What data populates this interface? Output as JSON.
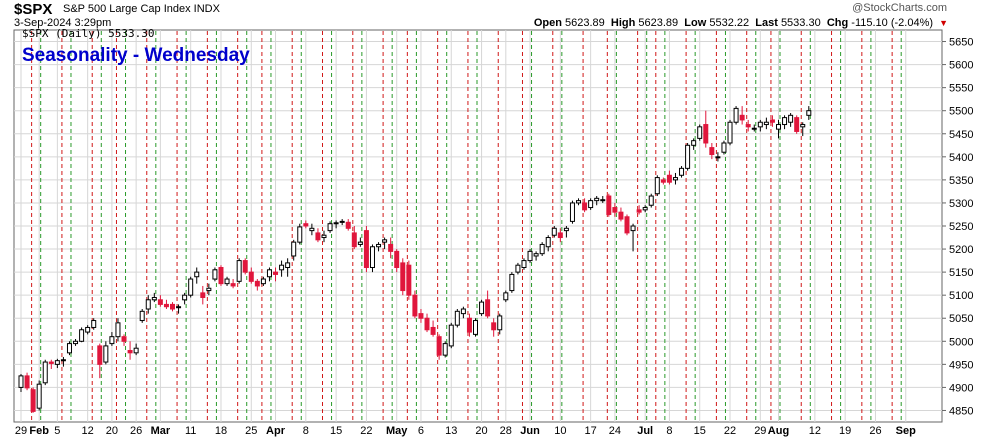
{
  "header": {
    "symbol": "$SPX",
    "description": "S&P 500 Large Cap Index INDX",
    "date_time": "3-Sep-2024 3:29pm",
    "copyright": "@StockCharts.com",
    "open_label": "Open",
    "open": "5623.89",
    "high_label": "High",
    "high": "5623.89",
    "low_label": "Low",
    "low": "5532.22",
    "last_label": "Last",
    "last": "5533.30",
    "chg_label": "Chg",
    "chg": "-115.10 (-2.04%)"
  },
  "legend": "$SPX (Daily) 5533.30",
  "colors": {
    "up": "#000000",
    "down": "#e0163c",
    "green_line": "#2a9a2a",
    "red_line": "#d01818",
    "grid": "#d6d6d6",
    "title": "#0000cc"
  },
  "chart_data": {
    "type": "candlestick",
    "title": "Seasonality - Wednesday",
    "xlabel": "",
    "ylabel": "",
    "ylim": [
      4825,
      5675
    ],
    "y_ticks": [
      4850,
      4900,
      4950,
      5000,
      5050,
      5100,
      5150,
      5200,
      5250,
      5300,
      5350,
      5400,
      5450,
      5500,
      5550,
      5600,
      5650
    ],
    "x_ticks": [
      {
        "i": 0,
        "label": "29"
      },
      {
        "i": 3,
        "label": "Feb"
      },
      {
        "i": 6,
        "label": "5"
      },
      {
        "i": 11,
        "label": "12"
      },
      {
        "i": 15,
        "label": "20"
      },
      {
        "i": 19,
        "label": "26"
      },
      {
        "i": 23,
        "label": "Mar"
      },
      {
        "i": 28,
        "label": "11"
      },
      {
        "i": 33,
        "label": "18"
      },
      {
        "i": 38,
        "label": "25"
      },
      {
        "i": 42,
        "label": "Apr"
      },
      {
        "i": 47,
        "label": "8"
      },
      {
        "i": 52,
        "label": "15"
      },
      {
        "i": 57,
        "label": "22"
      },
      {
        "i": 62,
        "label": "May"
      },
      {
        "i": 66,
        "label": "6"
      },
      {
        "i": 71,
        "label": "13"
      },
      {
        "i": 76,
        "label": "20"
      },
      {
        "i": 80,
        "label": "28"
      },
      {
        "i": 84,
        "label": "Jun"
      },
      {
        "i": 89,
        "label": "10"
      },
      {
        "i": 94,
        "label": "17"
      },
      {
        "i": 98,
        "label": "24"
      },
      {
        "i": 103,
        "label": "Jul"
      },
      {
        "i": 107,
        "label": "8"
      },
      {
        "i": 112,
        "label": "15"
      },
      {
        "i": 117,
        "label": "22"
      },
      {
        "i": 122,
        "label": "29"
      },
      {
        "i": 125,
        "label": "Aug"
      },
      {
        "i": 131,
        "label": "12"
      },
      {
        "i": 136,
        "label": "19"
      },
      {
        "i": 141,
        "label": "26"
      },
      {
        "i": 146,
        "label": "Sep"
      }
    ],
    "seasonality_lines": [
      {
        "i": 2,
        "kind": "red"
      },
      {
        "i": 3,
        "kind": "green"
      },
      {
        "i": 7,
        "kind": "red"
      },
      {
        "i": 8,
        "kind": "green"
      },
      {
        "i": 12,
        "kind": "red"
      },
      {
        "i": 13,
        "kind": "green"
      },
      {
        "i": 16,
        "kind": "red"
      },
      {
        "i": 17,
        "kind": "green"
      },
      {
        "i": 21,
        "kind": "red"
      },
      {
        "i": 22,
        "kind": "green"
      },
      {
        "i": 26,
        "kind": "red"
      },
      {
        "i": 27,
        "kind": "green"
      },
      {
        "i": 31,
        "kind": "red"
      },
      {
        "i": 32,
        "kind": "green"
      },
      {
        "i": 36,
        "kind": "red"
      },
      {
        "i": 37,
        "kind": "green"
      },
      {
        "i": 40,
        "kind": "red"
      },
      {
        "i": 41,
        "kind": "green"
      },
      {
        "i": 45,
        "kind": "red"
      },
      {
        "i": 46,
        "kind": "green"
      },
      {
        "i": 50,
        "kind": "red"
      },
      {
        "i": 51,
        "kind": "green"
      },
      {
        "i": 55,
        "kind": "red"
      },
      {
        "i": 56,
        "kind": "green"
      },
      {
        "i": 60,
        "kind": "red"
      },
      {
        "i": 61,
        "kind": "green"
      },
      {
        "i": 64,
        "kind": "red"
      },
      {
        "i": 65,
        "kind": "green"
      },
      {
        "i": 69,
        "kind": "red"
      },
      {
        "i": 70,
        "kind": "green"
      },
      {
        "i": 74,
        "kind": "red"
      },
      {
        "i": 75,
        "kind": "green"
      },
      {
        "i": 79,
        "kind": "red"
      },
      {
        "i": 83,
        "kind": "red"
      },
      {
        "i": 84,
        "kind": "green"
      },
      {
        "i": 88,
        "kind": "red"
      },
      {
        "i": 89,
        "kind": "green"
      },
      {
        "i": 93,
        "kind": "red"
      },
      {
        "i": 97,
        "kind": "red"
      },
      {
        "i": 98,
        "kind": "green"
      },
      {
        "i": 102,
        "kind": "red"
      },
      {
        "i": 103,
        "kind": "green"
      },
      {
        "i": 105,
        "kind": "red"
      },
      {
        "i": 106,
        "kind": "green"
      },
      {
        "i": 110,
        "kind": "red"
      },
      {
        "i": 111,
        "kind": "green"
      },
      {
        "i": 115,
        "kind": "red"
      },
      {
        "i": 116,
        "kind": "green"
      },
      {
        "i": 120,
        "kind": "red"
      },
      {
        "i": 121,
        "kind": "green"
      },
      {
        "i": 124,
        "kind": "red"
      },
      {
        "i": 125,
        "kind": "green"
      },
      {
        "i": 129,
        "kind": "red"
      },
      {
        "i": 130,
        "kind": "green"
      },
      {
        "i": 134,
        "kind": "red"
      },
      {
        "i": 135,
        "kind": "green"
      },
      {
        "i": 139,
        "kind": "red"
      },
      {
        "i": 140,
        "kind": "green"
      },
      {
        "i": 144,
        "kind": "red"
      },
      {
        "i": 145,
        "kind": "green"
      }
    ],
    "ohlc": [
      [
        4900,
        4929,
        4890,
        4925
      ],
      [
        4925,
        4932,
        4894,
        4899
      ],
      [
        4895,
        4900,
        4845,
        4848
      ],
      [
        4855,
        4915,
        4850,
        4907
      ],
      [
        4910,
        4960,
        4905,
        4955
      ],
      [
        4955,
        4960,
        4940,
        4952
      ],
      [
        4950,
        4962,
        4942,
        4958
      ],
      [
        4958,
        4966,
        4945,
        4960
      ],
      [
        4975,
        5000,
        4970,
        4995
      ],
      [
        4995,
        5005,
        4990,
        5000
      ],
      [
        5000,
        5030,
        4998,
        5025
      ],
      [
        5020,
        5035,
        5015,
        5030
      ],
      [
        5030,
        5050,
        5025,
        5045
      ],
      [
        4990,
        4995,
        4920,
        4950
      ],
      [
        4955,
        5000,
        4950,
        4990
      ],
      [
        4995,
        5020,
        4990,
        5010
      ],
      [
        5010,
        5050,
        5000,
        5040
      ],
      [
        5010,
        5015,
        4990,
        5000
      ],
      [
        4980,
        5000,
        4960,
        4975
      ],
      [
        4975,
        4995,
        4970,
        4985
      ],
      [
        5045,
        5070,
        5040,
        5065
      ],
      [
        5070,
        5100,
        5060,
        5090
      ],
      [
        5090,
        5105,
        5085,
        5095
      ],
      [
        5090,
        5100,
        5075,
        5080
      ],
      [
        5080,
        5090,
        5070,
        5075
      ],
      [
        5080,
        5085,
        5065,
        5070
      ],
      [
        5075,
        5080,
        5060,
        5075
      ],
      [
        5090,
        5105,
        5080,
        5100
      ],
      [
        5100,
        5140,
        5095,
        5135
      ],
      [
        5140,
        5160,
        5125,
        5150
      ],
      [
        5105,
        5120,
        5080,
        5095
      ],
      [
        5110,
        5125,
        5100,
        5115
      ],
      [
        5135,
        5160,
        5130,
        5155
      ],
      [
        5160,
        5165,
        5120,
        5125
      ],
      [
        5125,
        5140,
        5120,
        5135
      ],
      [
        5125,
        5135,
        5115,
        5120
      ],
      [
        5130,
        5180,
        5125,
        5175
      ],
      [
        5175,
        5180,
        5145,
        5150
      ],
      [
        5150,
        5160,
        5125,
        5130
      ],
      [
        5130,
        5135,
        5110,
        5120
      ],
      [
        5125,
        5140,
        5120,
        5135
      ],
      [
        5140,
        5160,
        5130,
        5155
      ],
      [
        5150,
        5160,
        5130,
        5145
      ],
      [
        5155,
        5175,
        5140,
        5165
      ],
      [
        5160,
        5180,
        5140,
        5170
      ],
      [
        5185,
        5220,
        5175,
        5215
      ],
      [
        5215,
        5255,
        5210,
        5248
      ],
      [
        5255,
        5262,
        5245,
        5250
      ],
      [
        5240,
        5255,
        5230,
        5245
      ],
      [
        5235,
        5245,
        5215,
        5220
      ],
      [
        5225,
        5240,
        5215,
        5230
      ],
      [
        5240,
        5260,
        5235,
        5255
      ],
      [
        5255,
        5262,
        5245,
        5257
      ],
      [
        5258,
        5265,
        5252,
        5260
      ],
      [
        5258,
        5265,
        5240,
        5245
      ],
      [
        5235,
        5250,
        5200,
        5205
      ],
      [
        5210,
        5225,
        5205,
        5215
      ],
      [
        5240,
        5250,
        5150,
        5160
      ],
      [
        5160,
        5210,
        5150,
        5205
      ],
      [
        5205,
        5215,
        5195,
        5210
      ],
      [
        5215,
        5225,
        5200,
        5220
      ],
      [
        5210,
        5225,
        5180,
        5195
      ],
      [
        5195,
        5200,
        5150,
        5160
      ],
      [
        5170,
        5180,
        5100,
        5110
      ],
      [
        5165,
        5175,
        5090,
        5100
      ],
      [
        5100,
        5110,
        5050,
        5055
      ],
      [
        5060,
        5070,
        5040,
        5050
      ],
      [
        5050,
        5060,
        5020,
        5025
      ],
      [
        5030,
        5045,
        5010,
        5015
      ],
      [
        5010,
        5015,
        4960,
        4970
      ],
      [
        4970,
        5000,
        4965,
        4995
      ],
      [
        4990,
        5040,
        4985,
        5035
      ],
      [
        5035,
        5070,
        5030,
        5065
      ],
      [
        5060,
        5075,
        5050,
        5070
      ],
      [
        5050,
        5060,
        5010,
        5020
      ],
      [
        5015,
        5050,
        5010,
        5045
      ],
      [
        5060,
        5090,
        5055,
        5085
      ],
      [
        5090,
        5110,
        5050,
        5055
      ],
      [
        5040,
        5050,
        5010,
        5025
      ],
      [
        5025,
        5060,
        5015,
        5055
      ],
      [
        5090,
        5110,
        5085,
        5105
      ],
      [
        5110,
        5150,
        5105,
        5145
      ],
      [
        5150,
        5170,
        5145,
        5165
      ],
      [
        5160,
        5180,
        5155,
        5175
      ],
      [
        5175,
        5200,
        5170,
        5195
      ],
      [
        5185,
        5195,
        5175,
        5190
      ],
      [
        5190,
        5215,
        5185,
        5210
      ],
      [
        5205,
        5230,
        5195,
        5225
      ],
      [
        5230,
        5250,
        5225,
        5245
      ],
      [
        5235,
        5245,
        5215,
        5225
      ],
      [
        5240,
        5250,
        5225,
        5245
      ],
      [
        5260,
        5305,
        5255,
        5300
      ],
      [
        5300,
        5310,
        5295,
        5305
      ],
      [
        5300,
        5310,
        5280,
        5285
      ],
      [
        5290,
        5310,
        5285,
        5305
      ],
      [
        5305,
        5315,
        5295,
        5310
      ],
      [
        5305,
        5315,
        5300,
        5307
      ],
      [
        5315,
        5320,
        5270,
        5275
      ],
      [
        5290,
        5300,
        5270,
        5280
      ],
      [
        5280,
        5290,
        5260,
        5265
      ],
      [
        5270,
        5275,
        5230,
        5235
      ],
      [
        5240,
        5255,
        5195,
        5250
      ],
      [
        5285,
        5295,
        5275,
        5280
      ],
      [
        5285,
        5295,
        5280,
        5290
      ],
      [
        5295,
        5320,
        5290,
        5315
      ],
      [
        5320,
        5360,
        5315,
        5355
      ],
      [
        5350,
        5355,
        5340,
        5345
      ],
      [
        5360,
        5370,
        5340,
        5345
      ],
      [
        5350,
        5365,
        5340,
        5355
      ],
      [
        5360,
        5380,
        5355,
        5375
      ],
      [
        5375,
        5430,
        5370,
        5425
      ],
      [
        5425,
        5440,
        5415,
        5435
      ],
      [
        5440,
        5470,
        5435,
        5465
      ],
      [
        5470,
        5500,
        5420,
        5430
      ],
      [
        5420,
        5430,
        5395,
        5405
      ],
      [
        5400,
        5410,
        5390,
        5400
      ],
      [
        5410,
        5435,
        5405,
        5430
      ],
      [
        5430,
        5480,
        5425,
        5475
      ],
      [
        5475,
        5510,
        5470,
        5505
      ],
      [
        5490,
        5510,
        5470,
        5480
      ],
      [
        5470,
        5480,
        5455,
        5465
      ],
      [
        5460,
        5470,
        5455,
        5462
      ],
      [
        5465,
        5480,
        5455,
        5475
      ],
      [
        5470,
        5485,
        5460,
        5475
      ],
      [
        5480,
        5490,
        5465,
        5475
      ],
      [
        5460,
        5480,
        5440,
        5470
      ],
      [
        5470,
        5490,
        5460,
        5485
      ],
      [
        5475,
        5495,
        5465,
        5490
      ],
      [
        5485,
        5490,
        5450,
        5455
      ],
      [
        5465,
        5475,
        5445,
        5470
      ],
      [
        5490,
        5510,
        5480,
        5500
      ]
    ]
  }
}
